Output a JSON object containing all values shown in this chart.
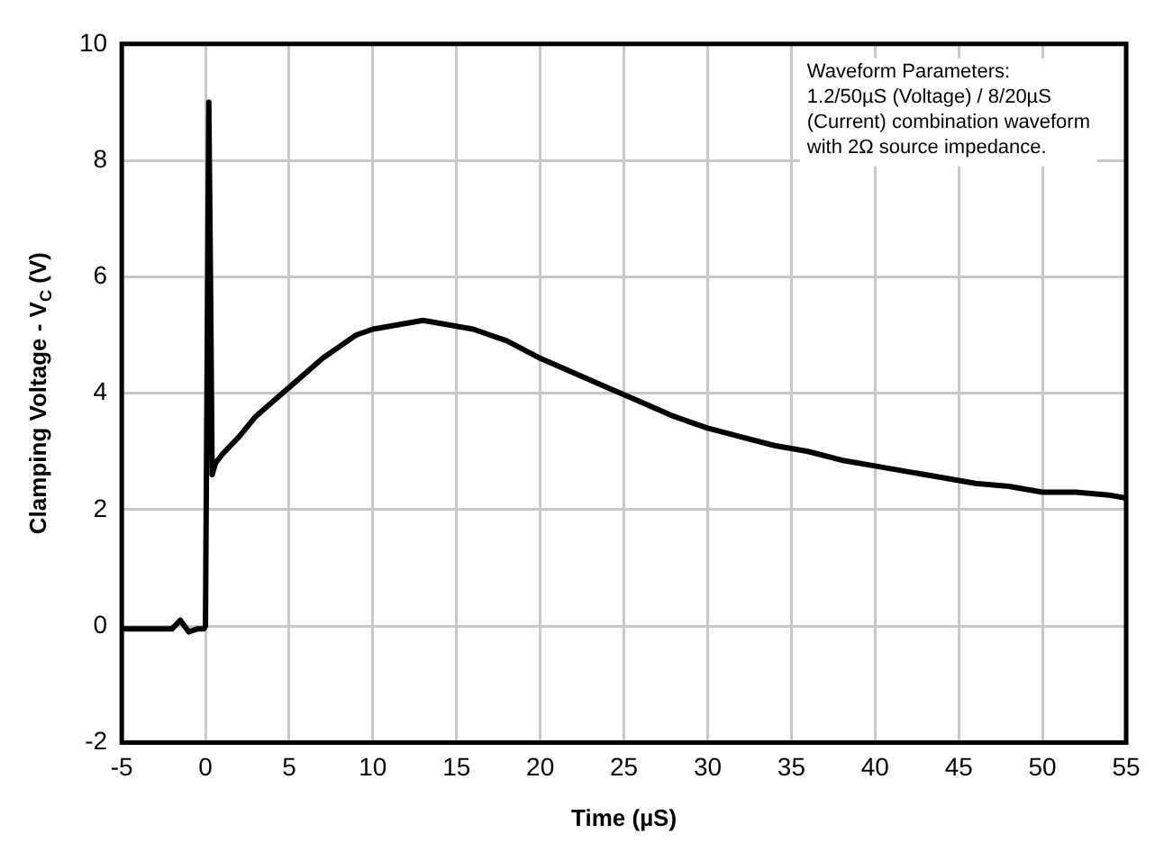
{
  "chart_data": {
    "type": "line",
    "xlabel": "Time (µS)",
    "ylabel": "Clamping Voltage - V$_{C}$ (V)",
    "annotations": [
      "Waveform Parameters:\n1.2/50µS (Voltage) / 8/20µS\n(Current) combination waveform\nwith 2Ω source impedance."
    ],
    "series": [
      {
        "color": "#000000",
        "x": [
          -5,
          -4,
          -3,
          -2,
          -1.5,
          -1,
          -0.5,
          -0.1,
          0,
          0.2,
          0.3,
          0.4,
          0.6,
          1,
          2,
          3,
          4,
          5,
          6,
          7,
          8,
          9,
          10,
          11,
          12,
          13,
          14,
          15,
          16,
          17,
          18,
          19,
          20,
          22,
          24,
          26,
          28,
          30,
          32,
          34,
          36,
          38,
          40,
          42,
          44,
          46,
          48,
          50,
          52,
          54,
          55
        ],
        "values": [
          -0.05,
          -0.05,
          -0.05,
          -0.05,
          0.1,
          -0.1,
          -0.05,
          -0.05,
          0,
          9,
          6,
          2.6,
          2.8,
          2.95,
          3.25,
          3.6,
          3.85,
          4.1,
          4.35,
          4.6,
          4.8,
          5.0,
          5.1,
          5.15,
          5.2,
          5.25,
          5.2,
          5.15,
          5.1,
          5.0,
          4.9,
          4.75,
          4.6,
          4.35,
          4.1,
          3.85,
          3.6,
          3.4,
          3.25,
          3.1,
          3.0,
          2.85,
          2.75,
          2.65,
          2.55,
          2.45,
          2.4,
          2.3,
          2.3,
          2.25,
          2.2
        ]
      }
    ],
    "xlim": [
      -5,
      55
    ],
    "xticks": [
      -5,
      0,
      5,
      10,
      15,
      20,
      25,
      30,
      35,
      40,
      45,
      50,
      55
    ],
    "ylim": [
      -2,
      10
    ],
    "yticks": [
      -2,
      0,
      2,
      4,
      6,
      8,
      10
    ],
    "grid": true,
    "legend": false,
    "marker": "none",
    "line_style": "solid"
  }
}
